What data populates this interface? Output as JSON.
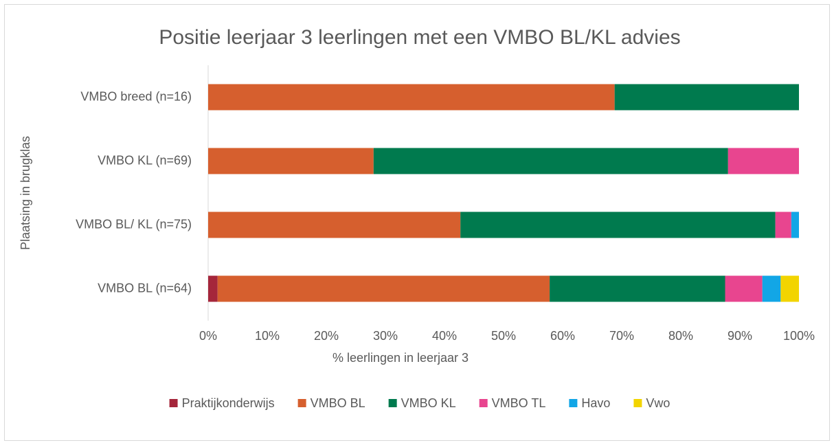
{
  "chart_data": {
    "type": "stacked-barh",
    "title": "Positie leerjaar 3 leerlingen met een VMBO BL/KL advies",
    "xlabel": "% leerlingen in leerjaar 3",
    "ylabel": "Plaatsing in brugklas",
    "categories": [
      "VMBO breed (n=16)",
      "VMBO KL (n=69)",
      "VMBO BL/ KL (n=75)",
      "VMBO BL (n=64)"
    ],
    "series": [
      {
        "name": "Praktijkonderwijs",
        "color": "#a5263b",
        "values": [
          0,
          0,
          0,
          1.6
        ]
      },
      {
        "name": "VMBO BL",
        "color": "#d65f2e",
        "values": [
          68.8,
          28,
          42.7,
          56.2
        ]
      },
      {
        "name": "VMBO KL",
        "color": "#007a4e",
        "values": [
          31.2,
          60,
          53.3,
          29.7
        ]
      },
      {
        "name": "VMBO TL",
        "color": "#e8458f",
        "values": [
          0,
          12,
          2.7,
          6.3
        ]
      },
      {
        "name": "Havo",
        "color": "#12a6e6",
        "values": [
          0,
          0,
          1.3,
          3.1
        ]
      },
      {
        "name": "Vwo",
        "color": "#f2d400",
        "values": [
          0,
          0,
          0,
          3.1
        ]
      }
    ],
    "xlim": [
      0,
      100
    ],
    "xticks": [
      {
        "value": 0,
        "label": "0%"
      },
      {
        "value": 10,
        "label": "10%"
      },
      {
        "value": 20,
        "label": "20%"
      },
      {
        "value": 30,
        "label": "30%"
      },
      {
        "value": 40,
        "label": "40%"
      },
      {
        "value": 50,
        "label": "50%"
      },
      {
        "value": 60,
        "label": "60%"
      },
      {
        "value": 70,
        "label": "70%"
      },
      {
        "value": 80,
        "label": "80%"
      },
      {
        "value": 90,
        "label": "90%"
      },
      {
        "value": 100,
        "label": "100%"
      }
    ],
    "legend": "bottom",
    "grid": false
  }
}
